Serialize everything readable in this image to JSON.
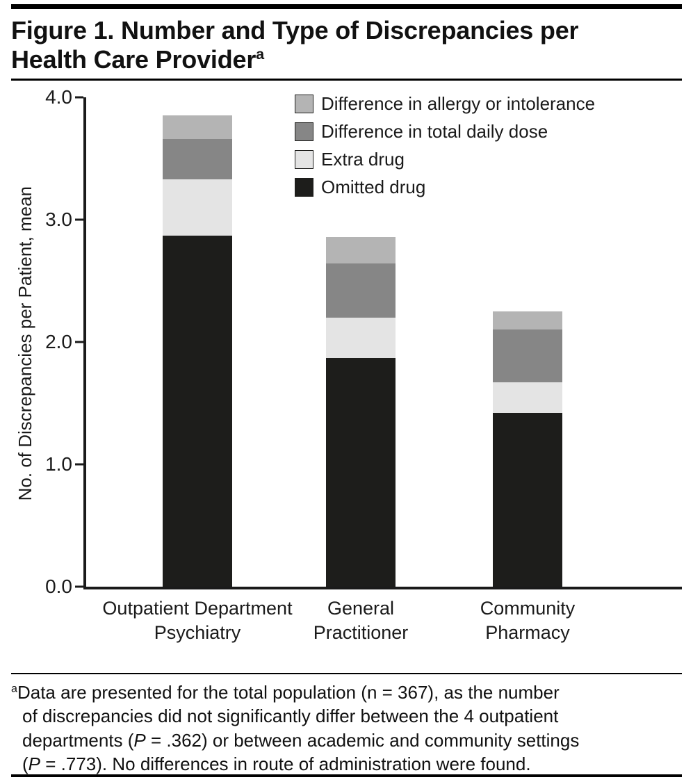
{
  "title": {
    "lines": [
      "Figure 1. Number and Type of Discrepancies per",
      "Health Care Provider"
    ],
    "sup": "a"
  },
  "chart_data": {
    "type": "bar",
    "stacked": true,
    "title": "Figure 1. Number and Type of Discrepancies per Health Care Provider",
    "xlabel": "",
    "ylabel": "No. of Discrepancies per Patient, mean",
    "ylim": [
      0,
      4.0
    ],
    "yticks": [
      "0.0",
      "1.0",
      "2.0",
      "3.0",
      "4.0"
    ],
    "grid": false,
    "categories": [
      "Outpatient Department\nPsychiatry",
      "General\nPractitioner",
      "Community\nPharmacy"
    ],
    "series": [
      {
        "name": "Omitted drug",
        "color": "#1d1d1b",
        "values": [
          2.87,
          1.87,
          1.42
        ]
      },
      {
        "name": "Extra drug",
        "color": "#e4e4e4",
        "values": [
          0.46,
          0.33,
          0.25
        ]
      },
      {
        "name": "Difference in total daily dose",
        "color": "#868686",
        "values": [
          0.33,
          0.44,
          0.43
        ]
      },
      {
        "name": "Difference in allergy or intolerance",
        "color": "#b4b4b4",
        "values": [
          0.19,
          0.22,
          0.15
        ]
      }
    ],
    "stack_totals": [
      3.85,
      2.86,
      2.25
    ],
    "legend_order_top_to_bottom": [
      "Difference in allergy or intolerance",
      "Difference in total daily dose",
      "Extra drug",
      "Omitted drug"
    ],
    "legend_position": "upper right inside plot"
  },
  "footnote": {
    "sup": "a",
    "lines": [
      "Data are presented for the total population (n = 367), as the number",
      "of discrepancies did not significantly differ between the 4 outpatient",
      "departments (P = .362) or between academic and community settings",
      "(P = .773). No differences in route of administration were found."
    ]
  },
  "colors": {
    "text": "#1a1a1a",
    "rule": "#000000"
  }
}
